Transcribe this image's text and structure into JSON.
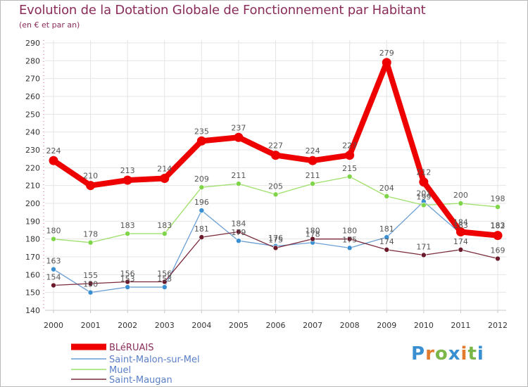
{
  "title": "Evolution de la Dotation Globale de Fonctionnement par Habitant",
  "subtitle": "(en € et par an)",
  "logo": {
    "text": "Proxiti",
    "colors": [
      "#3a8fd1",
      "#e37b2e",
      "#7ab648"
    ]
  },
  "chart_data": {
    "type": "line",
    "title": "Evolution de la Dotation Globale de Fonctionnement par Habitant",
    "subtitle": "(en € et par an)",
    "xlabel": "",
    "ylabel": "",
    "categories": [
      "2000",
      "2001",
      "2002",
      "2003",
      "2004",
      "2005",
      "2006",
      "2007",
      "2008",
      "2009",
      "2010",
      "2011",
      "2012"
    ],
    "ylim": [
      140,
      290
    ],
    "yticks": [
      140,
      150,
      160,
      170,
      180,
      190,
      200,
      210,
      220,
      230,
      240,
      250,
      260,
      270,
      280,
      290
    ],
    "grid": true,
    "legend_position": "bottom-left",
    "series": [
      {
        "name": "BLéRUAIS",
        "color": "#ee0000",
        "emphasis": true,
        "values": [
          224,
          210,
          213,
          214,
          235,
          237,
          227,
          224,
          227,
          279,
          212,
          184,
          182
        ],
        "labels": [
          "224",
          "210",
          "213",
          "214",
          "235",
          "237",
          "227",
          "224",
          "227",
          "279",
          "212",
          "184",
          "182"
        ]
      },
      {
        "name": "Saint-Malon-sur-Mel",
        "color": "#6b9fd4",
        "marker": "#3a8fd1",
        "values": [
          163,
          150,
          153,
          153,
          196,
          179,
          176,
          178,
          175,
          181,
          201,
          183,
          183
        ],
        "labels": [
          "163",
          "150",
          "153",
          "153",
          "196",
          "179",
          "176",
          "178",
          "175",
          "181",
          "201",
          "183",
          "183"
        ]
      },
      {
        "name": "Muel",
        "color": "#9ee06a",
        "marker": "#7fd54a",
        "values": [
          180,
          178,
          183,
          183,
          209,
          211,
          205,
          211,
          215,
          204,
          199,
          200,
          198
        ],
        "labels": [
          "180",
          "178",
          "183",
          "183",
          "209",
          "211",
          "205",
          "211",
          "215",
          "204",
          "199",
          "200",
          "198"
        ]
      },
      {
        "name": "Saint-Maugan",
        "color": "#7a2a3a",
        "marker": "#6a1a2a",
        "values": [
          154,
          155,
          156,
          156,
          181,
          184,
          175,
          180,
          180,
          174,
          171,
          174,
          169
        ],
        "labels": [
          "154",
          "155",
          "156",
          "156",
          "181",
          "184",
          "175",
          "180",
          "180",
          "174",
          "171",
          "174",
          "169"
        ]
      }
    ]
  }
}
